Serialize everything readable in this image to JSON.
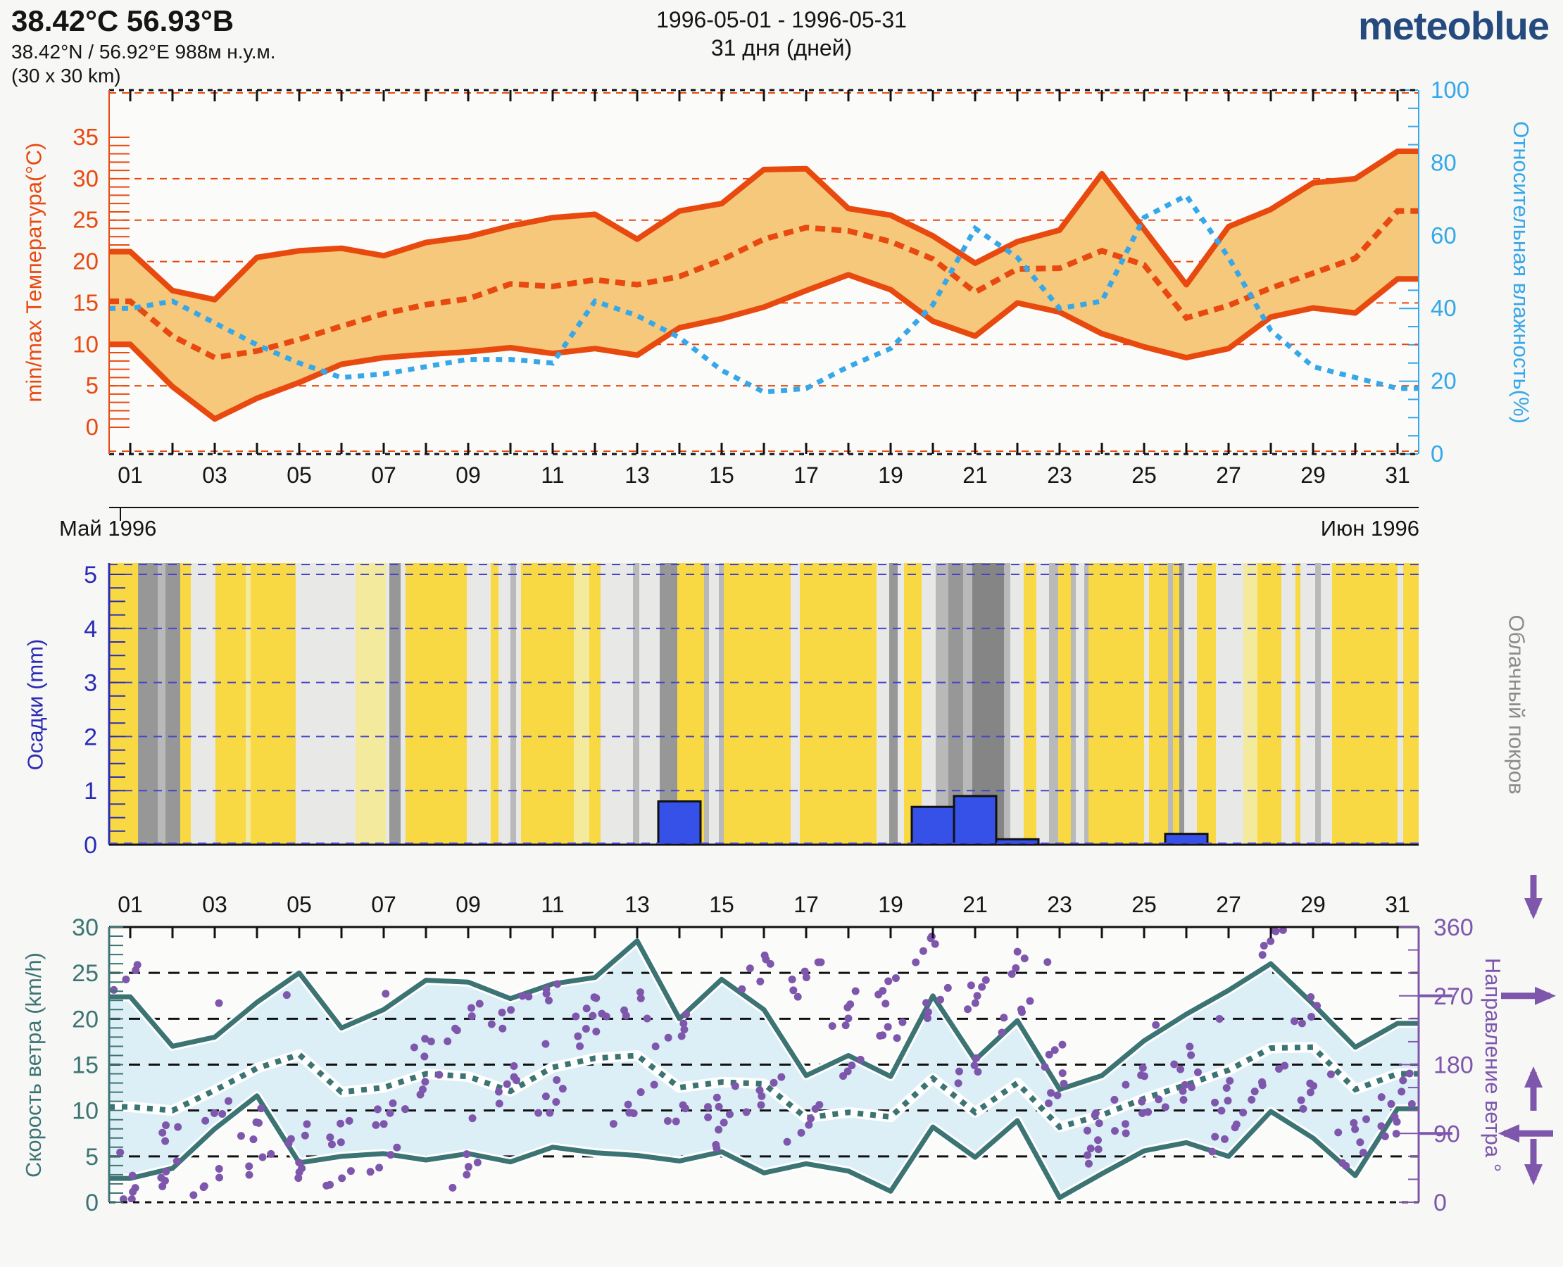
{
  "header": {
    "title": "38.42°C 56.93°B",
    "subtitle": "38.42°N / 56.92°E   988м н.у.м.",
    "area": "(30 x 30 km)",
    "period": "1996-05-01 - 1996-05-31",
    "days_count": "31 дня (дней)",
    "logo": "meteoblue"
  },
  "months": {
    "left": "Май 1996",
    "right": "Июн 1996"
  },
  "colors": {
    "orange": "#e8490f",
    "temp_band": "#f5c87c",
    "humidity_blue": "#36a7e8",
    "navy": "#2b2bb4",
    "grid_blue": "#4444cc",
    "bar_blue": "#3551e8",
    "teal": "#3c7474",
    "wind_band": "#dceef6",
    "purple": "#7e57ac",
    "cloud_gray_label": "#8c8c8c",
    "logo_blue": "#254a7e",
    "black": "#151515",
    "cloud_palette": {
      "y": "#f8d943",
      "p": "#f3ea9e",
      "l": "#e8e8e6",
      "m": "#b9b9b9",
      "d": "#979797",
      "k": "#858585"
    }
  },
  "day_labels": [
    "01",
    "03",
    "05",
    "07",
    "09",
    "11",
    "13",
    "15",
    "17",
    "19",
    "21",
    "23",
    "25",
    "27",
    "29",
    "31"
  ],
  "chart_data": [
    {
      "type": "area",
      "title": "min/max temperature with mean and relative humidity",
      "ylabel": "min/max Температура(°C)",
      "ylabel_right": "Относительная влажность(%)",
      "ylim": [
        0,
        35
      ],
      "yticks": [
        0,
        5,
        10,
        15,
        20,
        25,
        30,
        35
      ],
      "ylim_right": [
        0,
        100
      ],
      "yticks_right": [
        0,
        20,
        40,
        60,
        80,
        100
      ],
      "x": [
        1,
        2,
        3,
        4,
        5,
        6,
        7,
        8,
        9,
        10,
        11,
        12,
        13,
        14,
        15,
        16,
        17,
        18,
        19,
        20,
        21,
        22,
        23,
        24,
        25,
        26,
        27,
        28,
        29,
        30,
        31
      ],
      "series": [
        {
          "name": "tmax",
          "values": [
            21.2,
            16.5,
            15.4,
            20.5,
            21.3,
            21.6,
            20.7,
            22.3,
            23.0,
            24.3,
            25.3,
            25.7,
            22.7,
            26.1,
            27.0,
            31.1,
            31.2,
            26.4,
            25.6,
            23.1,
            19.8,
            22.4,
            23.8,
            30.6,
            23.9,
            17.2,
            24.2,
            26.3,
            29.5,
            30.0,
            33.3
          ]
        },
        {
          "name": "tmin",
          "values": [
            10.0,
            4.9,
            1.0,
            3.5,
            5.4,
            7.6,
            8.4,
            8.8,
            9.1,
            9.6,
            8.9,
            9.5,
            8.7,
            12.0,
            13.1,
            14.5,
            16.5,
            18.4,
            16.6,
            12.8,
            11.0,
            15.0,
            13.9,
            11.3,
            9.7,
            8.4,
            9.5,
            13.3,
            14.4,
            13.8,
            17.9
          ]
        },
        {
          "name": "tmean",
          "values": [
            15.2,
            11.0,
            8.4,
            9.2,
            10.6,
            12.2,
            13.7,
            14.8,
            15.5,
            17.3,
            17.0,
            17.8,
            17.2,
            18.2,
            20.2,
            22.7,
            24.1,
            23.7,
            22.4,
            20.3,
            16.3,
            19.1,
            19.2,
            21.3,
            19.6,
            13.2,
            14.7,
            16.8,
            18.6,
            20.4,
            26.1
          ]
        },
        {
          "name": "humidity_pct",
          "values": [
            40,
            42,
            36,
            30,
            25,
            21,
            22,
            24,
            26,
            26,
            25,
            42,
            38,
            32,
            23,
            17,
            18,
            24,
            29,
            41,
            62,
            54,
            40,
            42,
            65,
            71,
            54,
            34,
            24,
            21,
            18
          ]
        }
      ]
    },
    {
      "type": "bar",
      "title": "precipitation and cloud cover",
      "ylabel": "Осадки (mm)",
      "ylabel_right": "Облачный покров",
      "ylim": [
        0,
        5.2
      ],
      "yticks": [
        0,
        1,
        2,
        3,
        4,
        5
      ],
      "categories": [
        1,
        2,
        3,
        4,
        5,
        6,
        7,
        8,
        9,
        10,
        11,
        12,
        13,
        14,
        15,
        16,
        17,
        18,
        19,
        20,
        21,
        22,
        23,
        24,
        25,
        26,
        27,
        28,
        29,
        30,
        31
      ],
      "values": [
        0,
        0,
        0,
        0,
        0,
        0,
        0,
        0,
        0,
        0,
        0,
        0,
        0,
        0.8,
        0,
        0,
        0,
        0,
        0,
        0.7,
        0.9,
        0.1,
        0,
        0,
        0,
        0.2,
        0,
        0,
        0,
        0,
        0
      ],
      "cloud_stripes": [
        [
          0,
          "y"
        ],
        [
          41,
          "d"
        ],
        [
          69,
          "m"
        ],
        [
          80,
          "d"
        ],
        [
          101,
          "y"
        ],
        [
          116,
          "l"
        ],
        [
          151,
          "y"
        ],
        [
          194,
          "p"
        ],
        [
          201,
          "y"
        ],
        [
          265,
          "l"
        ],
        [
          350,
          "p"
        ],
        [
          393,
          "l"
        ],
        [
          398,
          "d"
        ],
        [
          414,
          "l"
        ],
        [
          421,
          "y"
        ],
        [
          508,
          "l"
        ],
        [
          542,
          "y"
        ],
        [
          553,
          "l"
        ],
        [
          570,
          "m"
        ],
        [
          578,
          "l"
        ],
        [
          585,
          "y"
        ],
        [
          660,
          "p"
        ],
        [
          682,
          "y"
        ],
        [
          698,
          "l"
        ],
        [
          744,
          "m"
        ],
        [
          753,
          "l"
        ],
        [
          782,
          "d"
        ],
        [
          807,
          "y"
        ],
        [
          845,
          "m"
        ],
        [
          852,
          "l"
        ],
        [
          866,
          "m"
        ],
        [
          873,
          "y"
        ],
        [
          968,
          "l"
        ],
        [
          981,
          "y"
        ],
        [
          1090,
          "l"
        ],
        [
          1108,
          "d"
        ],
        [
          1120,
          "l"
        ],
        [
          1129,
          "y"
        ],
        [
          1154,
          "l"
        ],
        [
          1174,
          "m"
        ],
        [
          1192,
          "d"
        ],
        [
          1213,
          "m"
        ],
        [
          1226,
          "k"
        ],
        [
          1271,
          "m"
        ],
        [
          1280,
          "l"
        ],
        [
          1299,
          "y"
        ],
        [
          1317,
          "l"
        ],
        [
          1335,
          "m"
        ],
        [
          1348,
          "y"
        ],
        [
          1366,
          "m"
        ],
        [
          1373,
          "l"
        ],
        [
          1385,
          "m"
        ],
        [
          1391,
          "y"
        ],
        [
          1470,
          "l"
        ],
        [
          1477,
          "y"
        ],
        [
          1504,
          "m"
        ],
        [
          1511,
          "y"
        ],
        [
          1520,
          "d"
        ],
        [
          1527,
          "l"
        ],
        [
          1545,
          "y"
        ],
        [
          1572,
          "l"
        ],
        [
          1611,
          "p"
        ],
        [
          1631,
          "y"
        ],
        [
          1665,
          "l"
        ],
        [
          1685,
          "y"
        ],
        [
          1692,
          "l"
        ],
        [
          1713,
          "m"
        ],
        [
          1721,
          "l"
        ],
        [
          1737,
          "y"
        ],
        [
          1830,
          "l"
        ],
        [
          1838,
          "y"
        ]
      ]
    },
    {
      "type": "area",
      "title": "wind speed min/mean/max and wind direction",
      "ylabel": "Скорость ветра (km/h)",
      "ylabel_right": "Направление ветра °",
      "ylim": [
        0,
        30
      ],
      "yticks": [
        0,
        5,
        10,
        15,
        20,
        25,
        30
      ],
      "ylim_right": [
        0,
        360
      ],
      "yticks_right": [
        0,
        90,
        180,
        270,
        360
      ],
      "x": [
        1,
        2,
        3,
        4,
        5,
        6,
        7,
        8,
        9,
        10,
        11,
        12,
        13,
        14,
        15,
        16,
        17,
        18,
        19,
        20,
        21,
        22,
        23,
        24,
        25,
        26,
        27,
        28,
        29,
        30,
        31
      ],
      "series": [
        {
          "name": "wind_max",
          "values": [
            22.4,
            17.0,
            18.0,
            21.8,
            25.0,
            19.0,
            21.0,
            24.2,
            24.0,
            22.2,
            23.8,
            24.5,
            28.5,
            20.0,
            24.3,
            21.0,
            13.8,
            16.0,
            13.7,
            22.5,
            15.5,
            19.8,
            12.3,
            13.8,
            17.6,
            20.5,
            23.1,
            26.0,
            21.6,
            16.9,
            19.5
          ]
        },
        {
          "name": "wind_min",
          "values": [
            2.6,
            3.7,
            8.0,
            11.6,
            4.3,
            5.0,
            5.3,
            4.6,
            5.3,
            4.4,
            6.0,
            5.4,
            5.1,
            4.5,
            5.5,
            3.2,
            4.2,
            3.4,
            1.2,
            8.2,
            4.9,
            8.9,
            0.5,
            3.1,
            5.6,
            6.5,
            5.0,
            9.9,
            7.0,
            2.9,
            10.2
          ]
        },
        {
          "name": "wind_mean",
          "values": [
            10.4,
            10.0,
            12.2,
            14.6,
            16.1,
            12.0,
            12.5,
            14.0,
            13.7,
            12.1,
            14.7,
            15.7,
            16.0,
            12.5,
            13.1,
            12.9,
            9.2,
            9.8,
            9.3,
            13.5,
            9.8,
            13.0,
            8.2,
            9.5,
            11.3,
            12.8,
            14.4,
            16.8,
            16.9,
            12.3,
            14.0
          ]
        }
      ],
      "wind_direction_clusters_deg": [
        {
          "a": 300,
          "b": 20
        },
        {
          "a": 40,
          "b": 95
        },
        {
          "a": 30,
          "b": 120
        },
        {
          "a": 55,
          "b": 105
        },
        {
          "a": 45,
          "b": 90
        },
        {
          "a": 35,
          "b": 95
        },
        {
          "a": 120,
          "b": 60
        },
        {
          "a": 150,
          "b": 210
        },
        {
          "a": 45,
          "b": 240
        },
        {
          "a": 255,
          "b": 160
        },
        {
          "a": 140,
          "b": 280
        },
        {
          "a": 260,
          "b": 230
        },
        {
          "a": 265,
          "b": 130
        },
        {
          "a": 120,
          "b": 230
        },
        {
          "a": 135,
          "b": 90
        },
        {
          "a": 310,
          "b": 150
        },
        {
          "a": 300,
          "b": 110
        },
        {
          "a": 255,
          "b": 180
        },
        {
          "a": 230,
          "b": 280
        },
        {
          "a": 265,
          "b": 340
        },
        {
          "a": 280,
          "b": 180
        },
        {
          "a": 320,
          "b": 250
        },
        {
          "a": 200,
          "b": 150
        },
        {
          "a": 115,
          "b": 75
        },
        {
          "a": 170,
          "b": 120
        },
        {
          "a": 150,
          "b": 190
        },
        {
          "a": 140,
          "b": 95
        },
        {
          "a": 160,
          "b": 350
        },
        {
          "a": 255,
          "b": 150
        },
        {
          "a": 105,
          "b": 65
        },
        {
          "a": 150,
          "b": 110
        }
      ],
      "direction_arrows": [
        "down",
        "right",
        "up",
        "left",
        "down"
      ]
    }
  ]
}
